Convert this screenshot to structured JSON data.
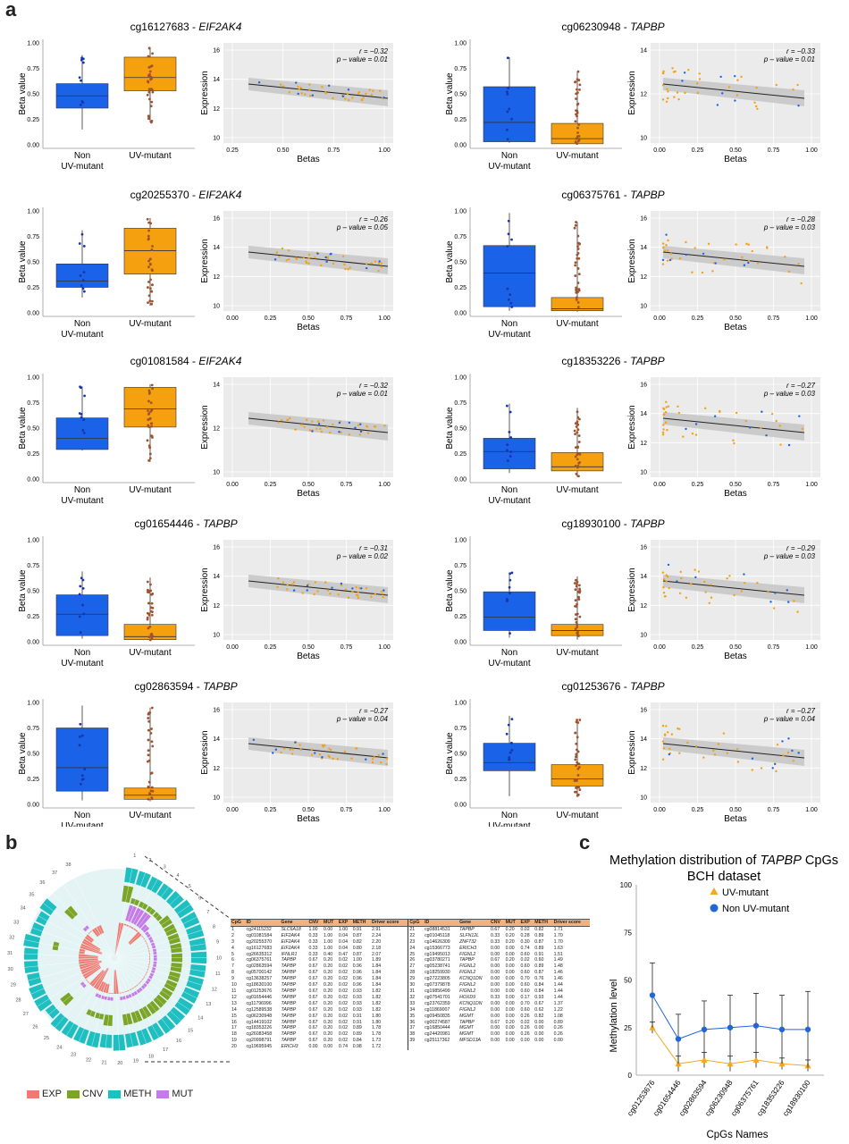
{
  "panel_labels": {
    "a": "a",
    "b": "b",
    "c": "c"
  },
  "box_axis": {
    "ylabel": "Beta value",
    "ticks": [
      "0.00",
      "0.25",
      "0.50",
      "0.75",
      "1.00"
    ],
    "group1_l1": "Non",
    "group1_l2": "UV-mutant",
    "group2": "UV-mutant"
  },
  "scatter_axis": {
    "xlabel": "Betas",
    "ylabel": "Expression",
    "xticks": [
      "0.00",
      "0.25",
      "0.50",
      "0.75",
      "1.00"
    ]
  },
  "panels": [
    {
      "cpg": "cg16127683",
      "gene": "EIF2AK4",
      "r": "r = −0.32",
      "p": "p – value = 0.01",
      "yticks": [
        "10",
        "12",
        "14",
        "16"
      ],
      "xticks": [
        "0.25",
        "0.50",
        "0.75",
        "1.00"
      ],
      "box_non": [
        0.15,
        0.36,
        0.48,
        0.6,
        0.88
      ],
      "box_uv": [
        0.22,
        0.53,
        0.66,
        0.86,
        0.95
      ]
    },
    {
      "cpg": "cg06230948",
      "gene": "TAPBP",
      "r": "r = −0.33",
      "p": "p – value = 0.01",
      "yticks": [
        "10",
        "12",
        "14"
      ],
      "xticks": [
        "0.00",
        "0.25",
        "0.50",
        "0.75",
        "1.00"
      ],
      "box_non": [
        0.02,
        0.03,
        0.22,
        0.57,
        0.86
      ],
      "box_uv": [
        0.0,
        0.01,
        0.06,
        0.21,
        0.72
      ]
    },
    {
      "cpg": "cg20255370",
      "gene": "EIF2AK4",
      "r": "r = −0.26",
      "p": "p – value = 0.05",
      "yticks": [
        "10",
        "12",
        "14",
        "16"
      ],
      "xticks": [
        "0.00",
        "0.25",
        "0.50",
        "0.75",
        "1.00"
      ],
      "box_non": [
        0.15,
        0.25,
        0.31,
        0.48,
        0.81
      ],
      "box_uv": [
        0.07,
        0.38,
        0.61,
        0.83,
        0.93
      ]
    },
    {
      "cpg": "cg06375761",
      "gene": "TAPBP",
      "r": "r = −0.28",
      "p": "p – value = 0.03",
      "yticks": [
        "10",
        "12",
        "14",
        "16"
      ],
      "xticks": [
        "0.00",
        "0.25",
        "0.50",
        "0.75",
        "1.00"
      ],
      "box_non": [
        0.02,
        0.06,
        0.39,
        0.66,
        0.98
      ],
      "box_uv": [
        0.01,
        0.02,
        0.04,
        0.15,
        0.89
      ]
    },
    {
      "cpg": "cg01081584",
      "gene": "EIF2AK4",
      "r": "r = −0.32",
      "p": "p – value = 0.01",
      "yticks": [
        "10",
        "12",
        "14"
      ],
      "xticks": [
        "0.00",
        "0.25",
        "0.50",
        "0.75",
        "1.00"
      ],
      "box_non": [
        0.28,
        0.29,
        0.4,
        0.6,
        0.91
      ],
      "box_uv": [
        0.17,
        0.51,
        0.69,
        0.9,
        0.93
      ]
    },
    {
      "cpg": "cg18353226",
      "gene": "TAPBP",
      "r": "r = −0.27",
      "p": "p – value = 0.03",
      "yticks": [
        "10",
        "12",
        "14",
        "16"
      ],
      "xticks": [
        "0.00",
        "0.25",
        "0.50",
        "0.75",
        "1.00"
      ],
      "box_non": [
        0.06,
        0.1,
        0.27,
        0.4,
        0.74
      ],
      "box_uv": [
        0.02,
        0.08,
        0.12,
        0.26,
        0.7
      ]
    },
    {
      "cpg": "cg01654446",
      "gene": "TAPBP",
      "r": "r = −0.31",
      "p": "p – value = 0.02",
      "yticks": [
        "10",
        "12",
        "14",
        "16"
      ],
      "xticks": [
        "0.00",
        "0.25",
        "0.50",
        "0.75",
        "1.00"
      ],
      "box_non": [
        0.03,
        0.06,
        0.27,
        0.46,
        0.69
      ],
      "box_uv": [
        0.01,
        0.02,
        0.05,
        0.17,
        0.63
      ]
    },
    {
      "cpg": "cg18930100",
      "gene": "TAPBP",
      "r": "r = −0.29",
      "p": "p – value = 0.03",
      "yticks": [
        "10",
        "12",
        "14",
        "16"
      ],
      "xticks": [
        "0.00",
        "0.25",
        "0.50",
        "0.75",
        "1.00"
      ],
      "box_non": [
        0.04,
        0.11,
        0.24,
        0.49,
        0.68
      ],
      "box_uv": [
        0.02,
        0.06,
        0.11,
        0.17,
        0.64
      ]
    },
    {
      "cpg": "cg02863594",
      "gene": "TAPBP",
      "r": "r = −0.27",
      "p": "p – value = 0.04",
      "yticks": [
        "10",
        "12",
        "14",
        "16"
      ],
      "xticks": [
        "0.00",
        "0.25",
        "0.50",
        "0.75",
        "1.00"
      ],
      "box_non": [
        0.04,
        0.13,
        0.36,
        0.75,
        0.97
      ],
      "box_uv": [
        0.03,
        0.05,
        0.09,
        0.16,
        0.95
      ]
    },
    {
      "cpg": "cg01253676",
      "gene": "TAPBP",
      "r": "r = −0.27",
      "p": "p – value = 0.04",
      "yticks": [
        "10",
        "12",
        "14",
        "16"
      ],
      "xticks": [
        "0.00",
        "0.25",
        "0.50",
        "0.75",
        "1.00"
      ],
      "box_non": [
        0.08,
        0.33,
        0.41,
        0.6,
        0.87
      ],
      "box_uv": [
        0.07,
        0.18,
        0.25,
        0.39,
        0.83
      ]
    }
  ],
  "circle_numbers": [
    "1",
    "2",
    "3",
    "4",
    "5",
    "6",
    "7",
    "8",
    "9",
    "10",
    "11",
    "12",
    "13",
    "14",
    "15",
    "16",
    "17",
    "18",
    "19",
    "20",
    "21",
    "22",
    "23",
    "24",
    "25",
    "26",
    "27",
    "28",
    "29",
    "30",
    "31",
    "32",
    "33",
    "34",
    "35",
    "36",
    "37",
    "38"
  ],
  "legend_b": [
    {
      "label": "EXP",
      "color": "#f07a72"
    },
    {
      "label": "CNV",
      "color": "#7aa526"
    },
    {
      "label": "METH",
      "color": "#1fbfc1"
    },
    {
      "label": "MUT",
      "color": "#c57ae8"
    }
  ],
  "table": {
    "headers": [
      "CpG",
      "ID",
      "Gene",
      "CNV",
      "MUT",
      "EXP",
      "METH",
      "Driver score"
    ],
    "left": [
      [
        "1",
        "cg24115232",
        "SLC6A18",
        "1.00",
        "0.00",
        "1.00",
        "0.91",
        "2.91"
      ],
      [
        "2",
        "cg01081584",
        "EIF2AK4",
        "0.33",
        "1.00",
        "0.04",
        "0.87",
        "2.24"
      ],
      [
        "3",
        "cg20255370",
        "EIF2AK4",
        "0.33",
        "1.00",
        "0.04",
        "0.82",
        "2.20"
      ],
      [
        "4",
        "cg16127683",
        "EIF2AK4",
        "0.33",
        "1.00",
        "0.04",
        "0.80",
        "2.18"
      ],
      [
        "5",
        "cg26635312",
        "IFNLR1",
        "0.33",
        "0.40",
        "0.47",
        "0.87",
        "2.07"
      ],
      [
        "6",
        "cg06375761",
        "TAPBP",
        "0.67",
        "0.20",
        "0.02",
        "1.00",
        "1.89"
      ],
      [
        "7",
        "cg02863594",
        "TAPBP",
        "0.67",
        "0.20",
        "0.02",
        "0.96",
        "1.84"
      ],
      [
        "8",
        "cg05700142",
        "TAPBP",
        "0.67",
        "0.20",
        "0.02",
        "0.96",
        "1.84"
      ],
      [
        "9",
        "cg13638257",
        "TAPBP",
        "0.67",
        "0.20",
        "0.02",
        "0.96",
        "1.84"
      ],
      [
        "10",
        "cg18630100",
        "TAPBP",
        "0.67",
        "0.20",
        "0.02",
        "0.96",
        "1.84"
      ],
      [
        "11",
        "cg01253676",
        "TAPBP",
        "0.67",
        "0.20",
        "0.02",
        "0.93",
        "1.82"
      ],
      [
        "12",
        "cg01654446",
        "TAPBP",
        "0.67",
        "0.20",
        "0.02",
        "0.93",
        "1.82"
      ],
      [
        "13",
        "cg11796996",
        "TAPBP",
        "0.67",
        "0.20",
        "0.02",
        "0.93",
        "1.82"
      ],
      [
        "14",
        "cg12589538",
        "TAPBP",
        "0.67",
        "0.20",
        "0.02",
        "0.93",
        "1.82"
      ],
      [
        "15",
        "cg06230948",
        "TAPBP",
        "0.67",
        "0.20",
        "0.02",
        "0.91",
        "1.80"
      ],
      [
        "16",
        "cg14419102",
        "TAPBP",
        "0.67",
        "0.20",
        "0.02",
        "0.91",
        "1.80"
      ],
      [
        "17",
        "cg18353226",
        "TAPBP",
        "0.67",
        "0.20",
        "0.02",
        "0.89",
        "1.78"
      ],
      [
        "18",
        "cg26083458",
        "TAPBP",
        "0.67",
        "0.20",
        "0.02",
        "0.89",
        "1.78"
      ],
      [
        "19",
        "cg20998791",
        "TAPBP",
        "0.67",
        "0.20",
        "0.02",
        "0.84",
        "1.73"
      ],
      [
        "20",
        "cg19695945",
        "ERICH3",
        "0.00",
        "0.00",
        "0.74",
        "0.98",
        "1.72"
      ]
    ],
    "right": [
      [
        "21",
        "cg08814531",
        "TAPBP",
        "0.67",
        "0.20",
        "0.02",
        "0.82",
        "1.71"
      ],
      [
        "22",
        "cg01045118",
        "SLFN12L",
        "0.33",
        "0.20",
        "0.28",
        "0.89",
        "1.70"
      ],
      [
        "23",
        "cg14626309",
        "ZNF732",
        "0.33",
        "0.20",
        "0.30",
        "0.87",
        "1.70"
      ],
      [
        "24",
        "cg15366773",
        "ERICH3",
        "0.00",
        "0.00",
        "0.74",
        "0.89",
        "1.63"
      ],
      [
        "25",
        "cg19495013",
        "FIGNL2",
        "0.00",
        "0.00",
        "0.60",
        "0.91",
        "1.51"
      ],
      [
        "26",
        "cg03780271",
        "TAPBP",
        "0.67",
        "0.20",
        "0.02",
        "0.60",
        "1.49"
      ],
      [
        "27",
        "cg05238741",
        "FIGNL2",
        "0.00",
        "0.00",
        "0.60",
        "0.89",
        "1.48"
      ],
      [
        "28",
        "cg18259930",
        "FIGNL2",
        "0.00",
        "0.00",
        "0.60",
        "0.87",
        "1.46"
      ],
      [
        "29",
        "cg27223805",
        "KCNQ1DN",
        "0.00",
        "0.00",
        "0.70",
        "0.76",
        "1.46"
      ],
      [
        "30",
        "cg07379878",
        "FIGNL2",
        "0.00",
        "0.00",
        "0.60",
        "0.84",
        "1.44"
      ],
      [
        "31",
        "cg19856499",
        "FIGNL2",
        "0.00",
        "0.00",
        "0.60",
        "0.84",
        "1.44"
      ],
      [
        "32",
        "cg07541701",
        "HOXD9",
        "0.33",
        "0.00",
        "0.17",
        "0.93",
        "1.44"
      ],
      [
        "33",
        "cg23762359",
        "KCNQ1DN",
        "0.00",
        "0.00",
        "0.70",
        "0.67",
        "1.37"
      ],
      [
        "34",
        "cg11869007",
        "FIGNL2",
        "0.00",
        "0.00",
        "0.60",
        "0.62",
        "1.22"
      ],
      [
        "35",
        "cg09450835",
        "MGMT",
        "0.00",
        "0.00",
        "0.26",
        "0.82",
        "1.08"
      ],
      [
        "36",
        "cg00274587",
        "TAPBP",
        "0.67",
        "0.20",
        "0.02",
        "0.00",
        "0.89"
      ],
      [
        "37",
        "cg16850444",
        "MGMT",
        "0.00",
        "0.00",
        "0.26",
        "0.00",
        "0.26"
      ],
      [
        "38",
        "cg24420981",
        "MGMT",
        "0.00",
        "0.00",
        "0.26",
        "0.00",
        "0.26"
      ],
      [
        "39",
        "cg25117362",
        "MFSD13A",
        "0.00",
        "0.00",
        "0.00",
        "0.00",
        "0.00"
      ]
    ]
  },
  "chart_data": {
    "type": "line",
    "title": "Methylation distribution of TAPBP CpGs",
    "title_line1_pre": "Methylation distribution of ",
    "title_gene": "TAPBP",
    "title_line1_post": " CpGs",
    "subtitle": "BCH dataset",
    "xlabel": "CpGs Names",
    "ylabel": "Methylation level",
    "ylim": [
      0,
      100
    ],
    "yticks": [
      "0",
      "25",
      "50",
      "75",
      "100"
    ],
    "categories": [
      "cg01253676",
      "cg01654446",
      "cg02863594",
      "cg06230948",
      "cg06375761",
      "cg18353226",
      "cg18930100"
    ],
    "series": [
      {
        "name": "UV-mutant",
        "color": "#f5a623",
        "values": [
          25,
          6,
          8,
          6,
          8,
          6,
          5
        ],
        "error": [
          3,
          4,
          4,
          4,
          4,
          3,
          3
        ]
      },
      {
        "name": "Non UV-mutant",
        "color": "#2166d4",
        "values": [
          42,
          19,
          24,
          25,
          26,
          24,
          24
        ],
        "error": [
          17,
          13,
          15,
          17,
          17,
          18,
          20
        ]
      }
    ],
    "legend": "top-right"
  },
  "colors": {
    "non": "#1a62e8",
    "uv": "#f5a00e",
    "panel_bg": "#ebebeb"
  }
}
